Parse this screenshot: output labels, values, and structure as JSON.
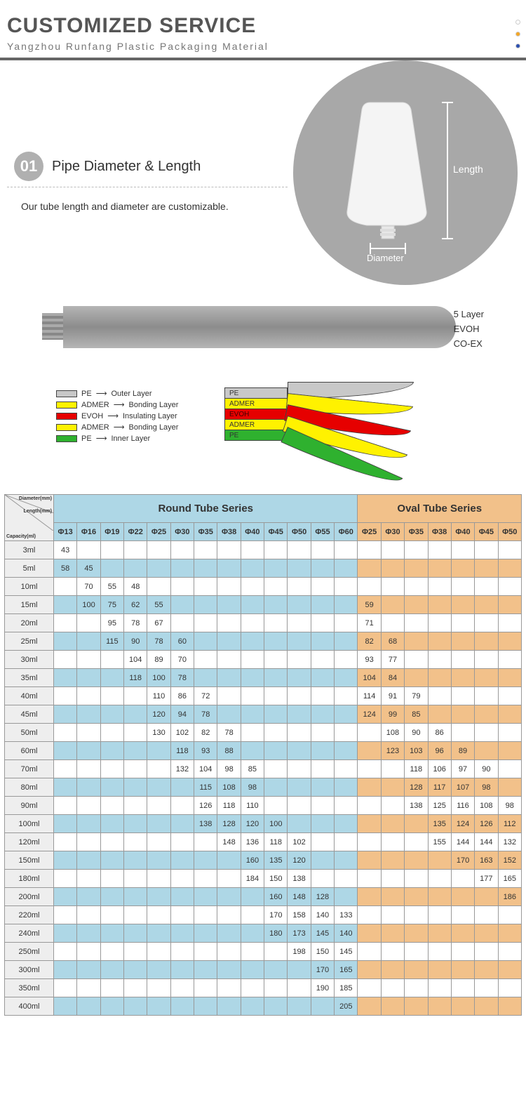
{
  "header": {
    "title": "CUSTOMIZED SERVICE",
    "subtitle": "Yangzhou Runfang Plastic Packaging Material",
    "dot_colors": [
      "#ffffff",
      "#f5a623",
      "#2b4fb0"
    ],
    "dot_border": "#cccccc"
  },
  "section1": {
    "num": "01",
    "title": "Pipe Diameter & Length",
    "desc": "Our tube length and diameter are customizable.",
    "label_length": "Length",
    "label_diameter": "Diameter",
    "circle_color": "#a8a8a8"
  },
  "diagram": {
    "side": {
      "l1": "5 Layer",
      "l2": "EVOH",
      "l3": "CO-EX"
    },
    "layers": [
      {
        "mat": "PE",
        "role": "Outer Layer",
        "color": "#c8c8c8"
      },
      {
        "mat": "ADMER",
        "role": "Bonding Layer",
        "color": "#fff200"
      },
      {
        "mat": "EVOH",
        "role": "Insulating Layer",
        "color": "#e60000"
      },
      {
        "mat": "ADMER",
        "role": "Bonding Layer",
        "color": "#fff200"
      },
      {
        "mat": "PE",
        "role": "Inner Layer",
        "color": "#2fb12f"
      }
    ]
  },
  "table": {
    "corner": {
      "a": "Diameter(mm)",
      "b": "Length(mm)",
      "c": "Capacity(ml)"
    },
    "round_title": "Round Tube Series",
    "oval_title": "Oval Tube Series",
    "round_cols": [
      "Φ13",
      "Φ16",
      "Φ19",
      "Φ22",
      "Φ25",
      "Φ30",
      "Φ35",
      "Φ38",
      "Φ40",
      "Φ45",
      "Φ50",
      "Φ55",
      "Φ60"
    ],
    "oval_cols": [
      "Φ25",
      "Φ30",
      "Φ35",
      "Φ38",
      "Φ40",
      "Φ45",
      "Φ50"
    ],
    "rows": [
      {
        "cap": "3ml",
        "r": [
          "43",
          "",
          "",
          "",
          "",
          "",
          "",
          "",
          "",
          "",
          "",
          "",
          ""
        ],
        "o": [
          "",
          "",
          "",
          "",
          "",
          "",
          ""
        ]
      },
      {
        "cap": "5ml",
        "r": [
          "58",
          "45",
          "",
          "",
          "",
          "",
          "",
          "",
          "",
          "",
          "",
          "",
          ""
        ],
        "o": [
          "",
          "",
          "",
          "",
          "",
          "",
          ""
        ]
      },
      {
        "cap": "10ml",
        "r": [
          "",
          "70",
          "55",
          "48",
          "",
          "",
          "",
          "",
          "",
          "",
          "",
          "",
          ""
        ],
        "o": [
          "",
          "",
          "",
          "",
          "",
          "",
          ""
        ]
      },
      {
        "cap": "15ml",
        "r": [
          "",
          "100",
          "75",
          "62",
          "55",
          "",
          "",
          "",
          "",
          "",
          "",
          "",
          ""
        ],
        "o": [
          "59",
          "",
          "",
          "",
          "",
          "",
          ""
        ]
      },
      {
        "cap": "20ml",
        "r": [
          "",
          "",
          "95",
          "78",
          "67",
          "",
          "",
          "",
          "",
          "",
          "",
          "",
          ""
        ],
        "o": [
          "71",
          "",
          "",
          "",
          "",
          "",
          ""
        ]
      },
      {
        "cap": "25ml",
        "r": [
          "",
          "",
          "115",
          "90",
          "78",
          "60",
          "",
          "",
          "",
          "",
          "",
          "",
          ""
        ],
        "o": [
          "82",
          "68",
          "",
          "",
          "",
          "",
          ""
        ]
      },
      {
        "cap": "30ml",
        "r": [
          "",
          "",
          "",
          "104",
          "89",
          "70",
          "",
          "",
          "",
          "",
          "",
          "",
          ""
        ],
        "o": [
          "93",
          "77",
          "",
          "",
          "",
          "",
          ""
        ]
      },
      {
        "cap": "35ml",
        "r": [
          "",
          "",
          "",
          "118",
          "100",
          "78",
          "",
          "",
          "",
          "",
          "",
          "",
          ""
        ],
        "o": [
          "104",
          "84",
          "",
          "",
          "",
          "",
          ""
        ]
      },
      {
        "cap": "40ml",
        "r": [
          "",
          "",
          "",
          "",
          "110",
          "86",
          "72",
          "",
          "",
          "",
          "",
          "",
          ""
        ],
        "o": [
          "114",
          "91",
          "79",
          "",
          "",
          "",
          ""
        ]
      },
      {
        "cap": "45ml",
        "r": [
          "",
          "",
          "",
          "",
          "120",
          "94",
          "78",
          "",
          "",
          "",
          "",
          "",
          ""
        ],
        "o": [
          "124",
          "99",
          "85",
          "",
          "",
          "",
          ""
        ]
      },
      {
        "cap": "50ml",
        "r": [
          "",
          "",
          "",
          "",
          "130",
          "102",
          "82",
          "78",
          "",
          "",
          "",
          "",
          ""
        ],
        "o": [
          "",
          "108",
          "90",
          "86",
          "",
          "",
          ""
        ]
      },
      {
        "cap": "60ml",
        "r": [
          "",
          "",
          "",
          "",
          "",
          "118",
          "93",
          "88",
          "",
          "",
          "",
          "",
          ""
        ],
        "o": [
          "",
          "123",
          "103",
          "96",
          "89",
          "",
          ""
        ]
      },
      {
        "cap": "70ml",
        "r": [
          "",
          "",
          "",
          "",
          "",
          "132",
          "104",
          "98",
          "85",
          "",
          "",
          "",
          ""
        ],
        "o": [
          "",
          "",
          "118",
          "106",
          "97",
          "90",
          ""
        ]
      },
      {
        "cap": "80ml",
        "r": [
          "",
          "",
          "",
          "",
          "",
          "",
          "115",
          "108",
          "98",
          "",
          "",
          "",
          ""
        ],
        "o": [
          "",
          "",
          "128",
          "117",
          "107",
          "98",
          ""
        ]
      },
      {
        "cap": "90ml",
        "r": [
          "",
          "",
          "",
          "",
          "",
          "",
          "126",
          "118",
          "110",
          "",
          "",
          "",
          ""
        ],
        "o": [
          "",
          "",
          "138",
          "125",
          "116",
          "108",
          "98"
        ]
      },
      {
        "cap": "100ml",
        "r": [
          "",
          "",
          "",
          "",
          "",
          "",
          "138",
          "128",
          "120",
          "100",
          "",
          "",
          ""
        ],
        "o": [
          "",
          "",
          "",
          "135",
          "124",
          "126",
          "112"
        ]
      },
      {
        "cap": "120ml",
        "r": [
          "",
          "",
          "",
          "",
          "",
          "",
          "",
          "148",
          "136",
          "118",
          "102",
          "",
          ""
        ],
        "o": [
          "",
          "",
          "",
          "155",
          "144",
          "144",
          "132"
        ]
      },
      {
        "cap": "150ml",
        "r": [
          "",
          "",
          "",
          "",
          "",
          "",
          "",
          "",
          "160",
          "135",
          "120",
          "",
          ""
        ],
        "o": [
          "",
          "",
          "",
          "",
          "170",
          "163",
          "152"
        ]
      },
      {
        "cap": "180ml",
        "r": [
          "",
          "",
          "",
          "",
          "",
          "",
          "",
          "",
          "184",
          "150",
          "138",
          "",
          ""
        ],
        "o": [
          "",
          "",
          "",
          "",
          "",
          "177",
          "165"
        ]
      },
      {
        "cap": "200ml",
        "r": [
          "",
          "",
          "",
          "",
          "",
          "",
          "",
          "",
          "",
          "160",
          "148",
          "128",
          ""
        ],
        "o": [
          "",
          "",
          "",
          "",
          "",
          "",
          "186"
        ]
      },
      {
        "cap": "220ml",
        "r": [
          "",
          "",
          "",
          "",
          "",
          "",
          "",
          "",
          "",
          "170",
          "158",
          "140",
          "133"
        ],
        "o": [
          "",
          "",
          "",
          "",
          "",
          "",
          ""
        ]
      },
      {
        "cap": "240ml",
        "r": [
          "",
          "",
          "",
          "",
          "",
          "",
          "",
          "",
          "",
          "180",
          "173",
          "145",
          "140"
        ],
        "o": [
          "",
          "",
          "",
          "",
          "",
          "",
          ""
        ]
      },
      {
        "cap": "250ml",
        "r": [
          "",
          "",
          "",
          "",
          "",
          "",
          "",
          "",
          "",
          "",
          "198",
          "150",
          "145"
        ],
        "o": [
          "",
          "",
          "",
          "",
          "",
          "",
          ""
        ]
      },
      {
        "cap": "300ml",
        "r": [
          "",
          "",
          "",
          "",
          "",
          "",
          "",
          "",
          "",
          "",
          "",
          "170",
          "165"
        ],
        "o": [
          "",
          "",
          "",
          "",
          "",
          "",
          ""
        ]
      },
      {
        "cap": "350ml",
        "r": [
          "",
          "",
          "",
          "",
          "",
          "",
          "",
          "",
          "",
          "",
          "",
          "190",
          "185"
        ],
        "o": [
          "",
          "",
          "",
          "",
          "",
          "",
          ""
        ]
      },
      {
        "cap": "400ml",
        "r": [
          "",
          "",
          "",
          "",
          "",
          "",
          "",
          "",
          "",
          "",
          "",
          "",
          "205"
        ],
        "o": [
          "",
          "",
          "",
          "",
          "",
          "",
          ""
        ]
      }
    ],
    "colors": {
      "round_bg": "#aed7e6",
      "oval_bg": "#f2c18a",
      "cap_bg": "#eeeeee",
      "border": "#999999"
    }
  }
}
